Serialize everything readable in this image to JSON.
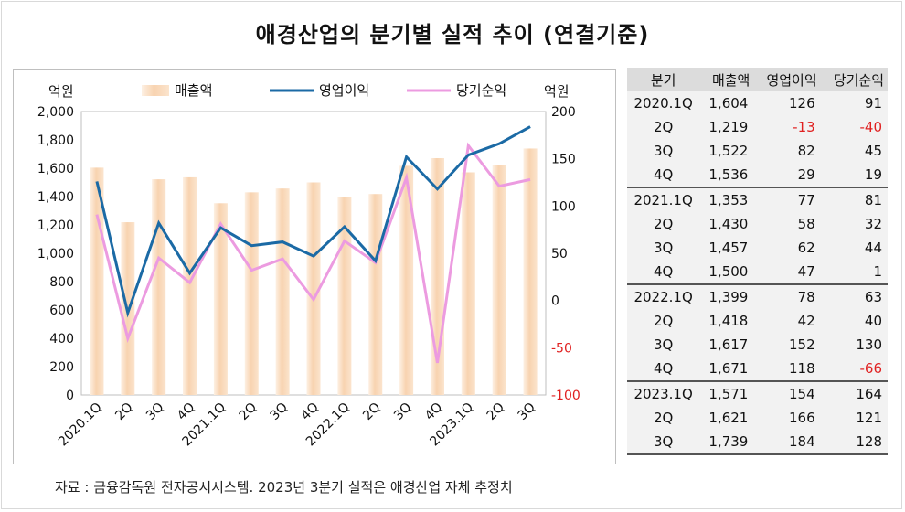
{
  "title": "애경산업의 분기별 실적 추이 (연결기준)",
  "source": "자료 : 금융감독원 전자공시시스템. 2023년 3분기 실적은 애경산업 자체 추정치",
  "colors": {
    "bar": "#f8d3b0",
    "op": "#1b6aa5",
    "net": "#ec9be0",
    "neg": "#e02020"
  },
  "table": {
    "headers": [
      "분기",
      "매출액",
      "영업이익",
      "당기순익"
    ],
    "rows": [
      {
        "q": "2020.1Q",
        "sales": "1,604",
        "op": "126",
        "net": "91"
      },
      {
        "q": "2Q",
        "sales": "1,219",
        "op": "-13",
        "net": "-40"
      },
      {
        "q": "3Q",
        "sales": "1,522",
        "op": "82",
        "net": "45"
      },
      {
        "q": "4Q",
        "sales": "1,536",
        "op": "29",
        "net": "19"
      },
      {
        "q": "2021.1Q",
        "sales": "1,353",
        "op": "77",
        "net": "81"
      },
      {
        "q": "2Q",
        "sales": "1,430",
        "op": "58",
        "net": "32"
      },
      {
        "q": "3Q",
        "sales": "1,457",
        "op": "62",
        "net": "44"
      },
      {
        "q": "4Q",
        "sales": "1,500",
        "op": "47",
        "net": "1"
      },
      {
        "q": "2022.1Q",
        "sales": "1,399",
        "op": "78",
        "net": "63"
      },
      {
        "q": "2Q",
        "sales": "1,418",
        "op": "42",
        "net": "40"
      },
      {
        "q": "3Q",
        "sales": "1,617",
        "op": "152",
        "net": "130"
      },
      {
        "q": "4Q",
        "sales": "1,671",
        "op": "118",
        "net": "-66"
      },
      {
        "q": "2023.1Q",
        "sales": "1,571",
        "op": "154",
        "net": "164"
      },
      {
        "q": "2Q",
        "sales": "1,621",
        "op": "166",
        "net": "121"
      },
      {
        "q": "3Q",
        "sales": "1,739",
        "op": "184",
        "net": "128"
      }
    ]
  },
  "chart_data": {
    "type": "bar",
    "categories": [
      "2020.1Q",
      "2Q",
      "3Q",
      "4Q",
      "2021.1Q",
      "2Q",
      "3Q",
      "4Q",
      "2022.1Q",
      "2Q",
      "3Q",
      "4Q",
      "2023.1Q",
      "2Q",
      "3Q"
    ],
    "series": [
      {
        "name": "매출액",
        "type": "bar",
        "axis": "left",
        "values": [
          1604,
          1219,
          1522,
          1536,
          1353,
          1430,
          1457,
          1500,
          1399,
          1418,
          1617,
          1671,
          1571,
          1621,
          1739
        ]
      },
      {
        "name": "영업이익",
        "type": "line",
        "axis": "right",
        "values": [
          126,
          -13,
          82,
          29,
          77,
          58,
          62,
          47,
          78,
          42,
          152,
          118,
          154,
          166,
          184
        ]
      },
      {
        "name": "당기순익",
        "type": "line",
        "axis": "right",
        "values": [
          91,
          -40,
          45,
          19,
          81,
          32,
          44,
          1,
          63,
          40,
          130,
          -66,
          164,
          121,
          128
        ]
      }
    ],
    "y_left": {
      "label": "억원",
      "min": 0,
      "max": 2000,
      "step": 200,
      "ticks": [
        "0",
        "200",
        "400",
        "600",
        "800",
        "1,000",
        "1,200",
        "1,400",
        "1,600",
        "1,800",
        "2,000"
      ]
    },
    "y_right": {
      "label": "억원",
      "min": -100,
      "max": 200,
      "step": 50,
      "ticks": [
        "-100",
        "-50",
        "0",
        "50",
        "100",
        "150",
        "200"
      ]
    },
    "legend": "top"
  }
}
